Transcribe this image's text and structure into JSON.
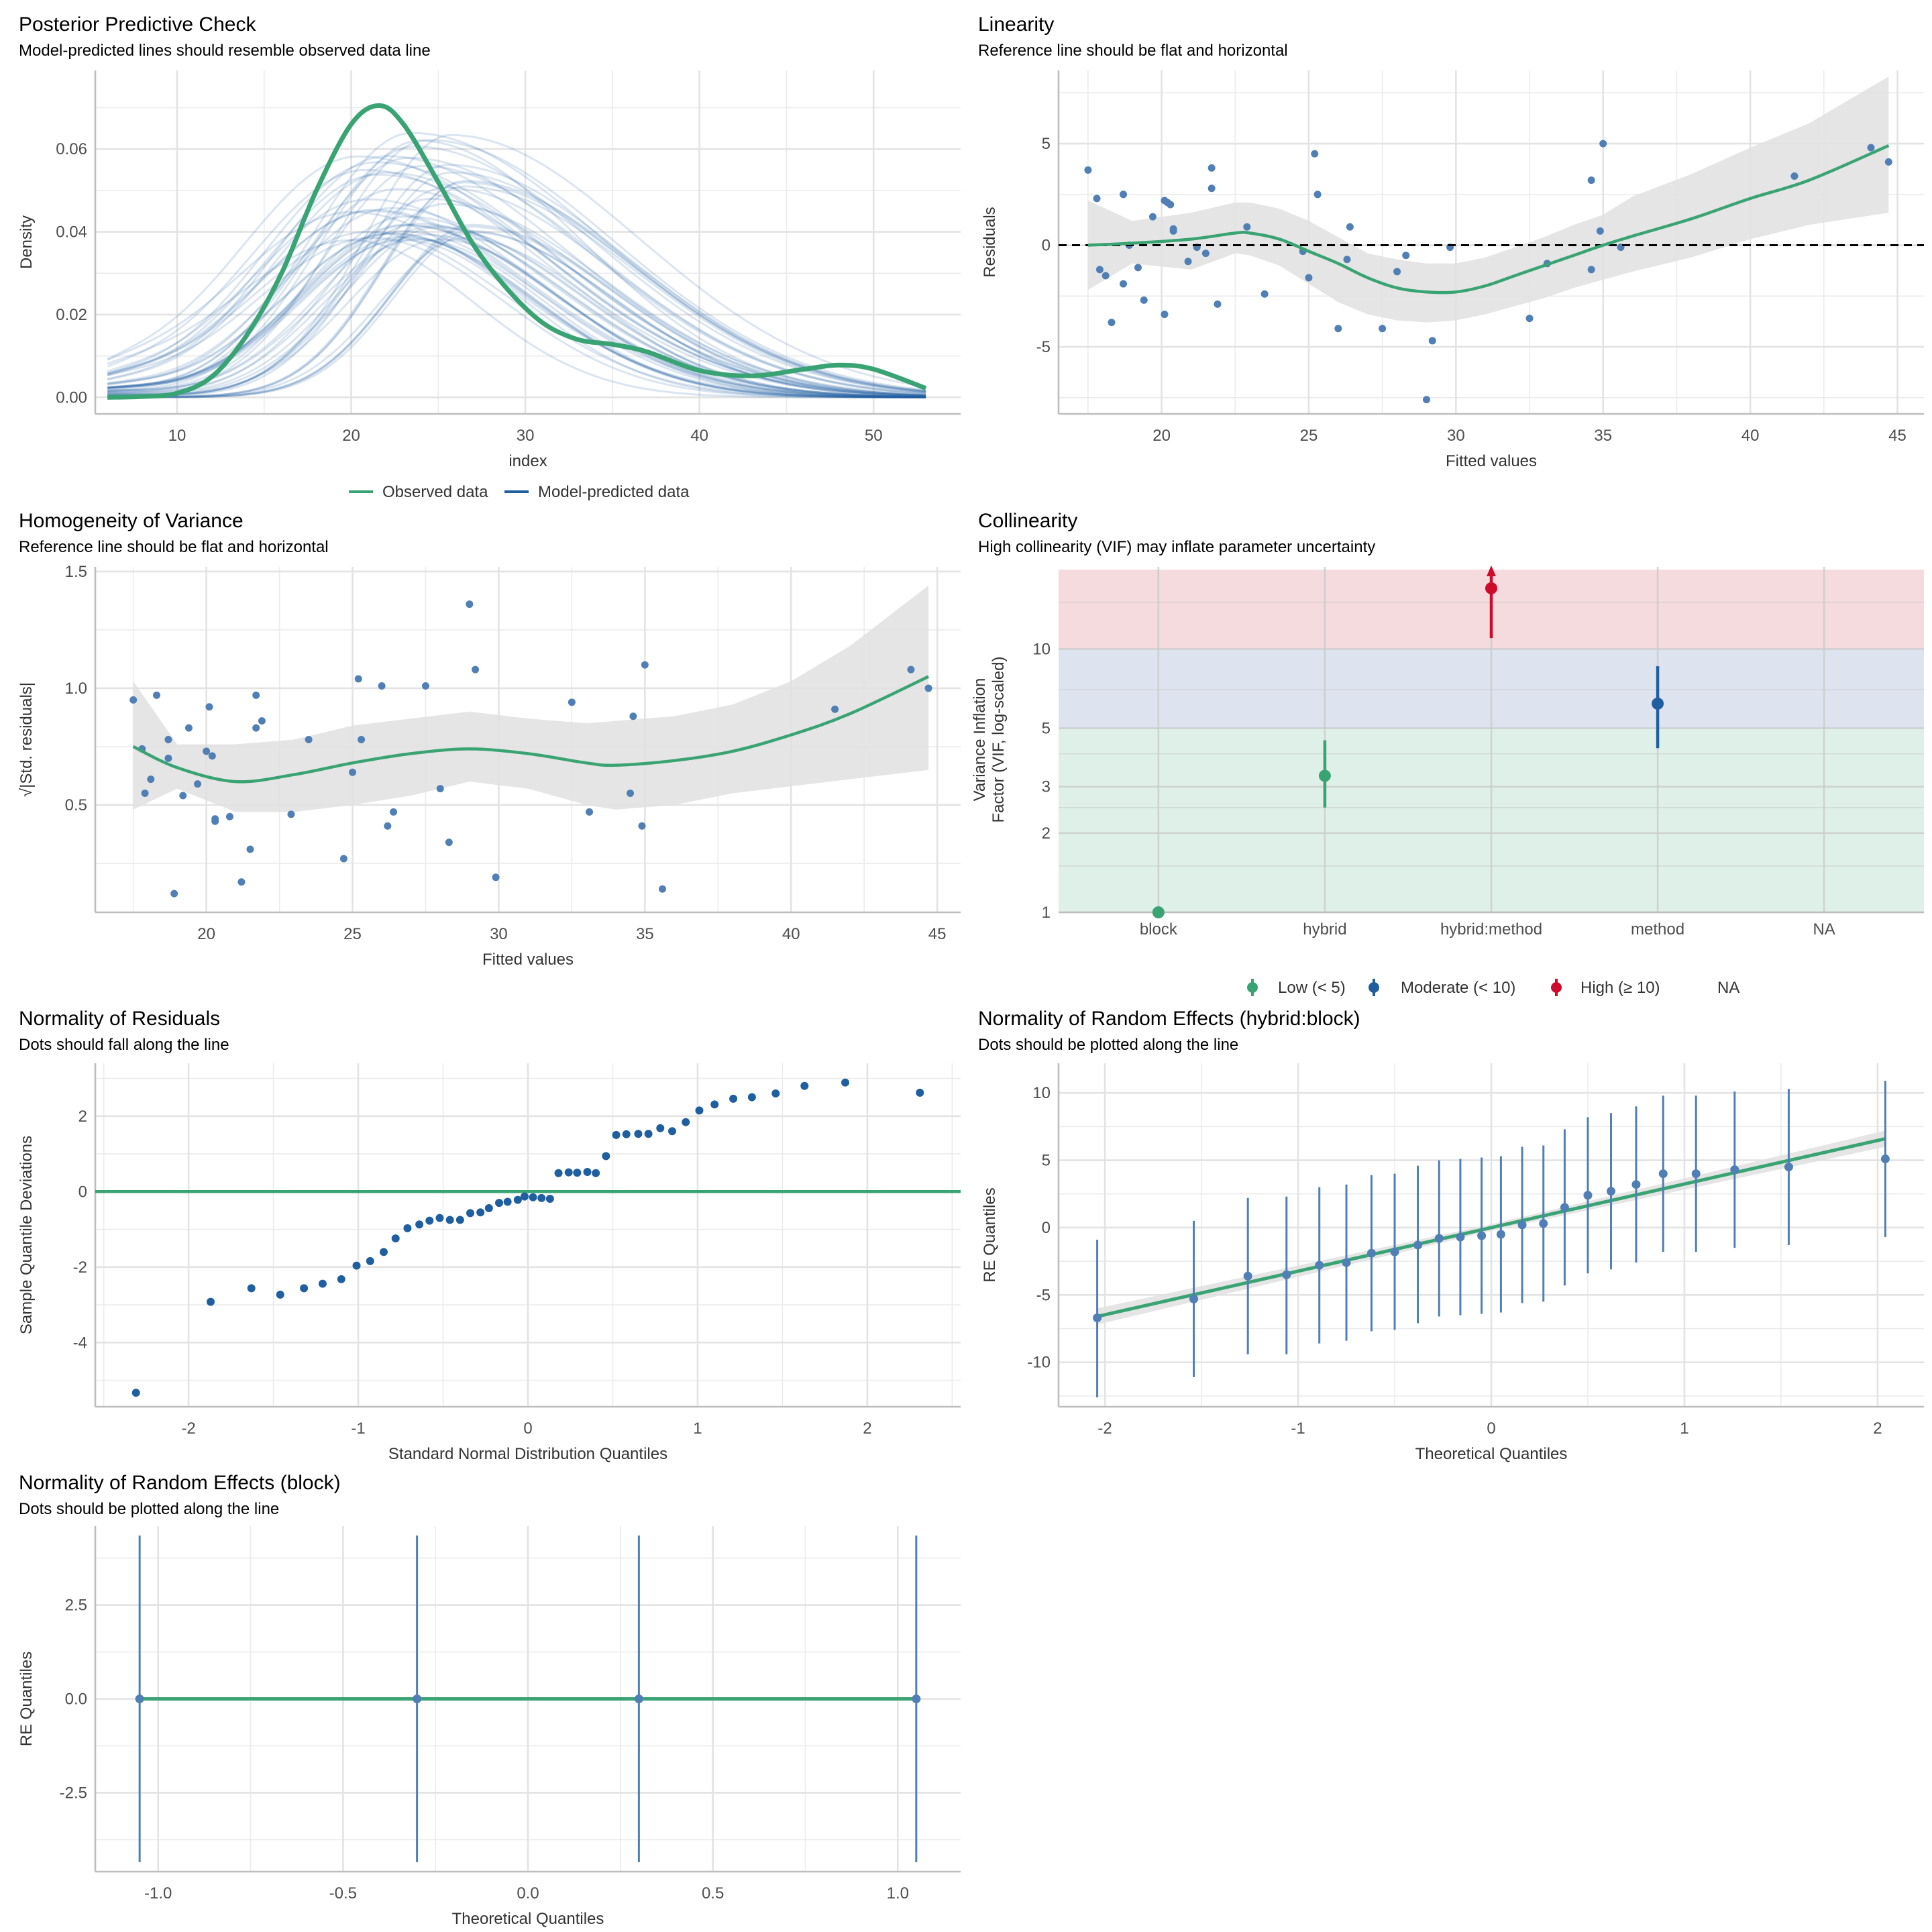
{
  "colors": {
    "green": "#3aa374",
    "blue": "#1f5fa0",
    "blue_light": "#4f7fb4",
    "red": "#cd0b2a",
    "band": "#e0e0e0",
    "zone_low": "#dff0e8",
    "zone_mod": "#dee4ef",
    "zone_high": "#f5dade"
  },
  "panels": {
    "ppc": {
      "title": "Posterior Predictive Check",
      "subtitle": "Model-predicted lines should resemble observed data line"
    },
    "lin": {
      "title": "Linearity",
      "subtitle": "Reference line should be flat and horizontal"
    },
    "hov": {
      "title": "Homogeneity of Variance",
      "subtitle": "Reference line should be flat and horizontal"
    },
    "col": {
      "title": "Collinearity",
      "subtitle": "High collinearity (VIF) may inflate parameter uncertainty"
    },
    "nor": {
      "title": "Normality of Residuals",
      "subtitle": "Dots should fall along the line"
    },
    "rehb": {
      "title": "Normality of Random Effects (hybrid:block)",
      "subtitle": "Dots should be plotted along the line"
    },
    "reb": {
      "title": "Normality of Random Effects (block)",
      "subtitle": "Dots should be plotted along the line"
    }
  },
  "chart_data": [
    {
      "id": "ppc",
      "type": "line",
      "title": "Posterior Predictive Check",
      "xlabel": "index",
      "ylabel": "Density",
      "xlim": [
        5.3,
        55
      ],
      "ylim": [
        -0.004,
        0.079
      ],
      "xticks": [
        10,
        20,
        30,
        40,
        50
      ],
      "yticks": [
        0.0,
        0.02,
        0.04,
        0.06
      ],
      "ytick_labels": [
        "0.00",
        "0.02",
        "0.04",
        "0.06"
      ],
      "legend": {
        "position": "bottom",
        "entries": [
          "Observed data",
          "Model-predicted data"
        ]
      },
      "observed": {
        "name": "Observed data",
        "x": [
          6,
          8,
          10,
          12,
          14,
          16,
          18,
          20,
          21.6,
          23,
          25,
          27,
          29,
          31,
          33,
          35,
          37,
          40,
          43,
          46,
          48,
          50,
          53
        ],
        "y": [
          0,
          0.0002,
          0.001,
          0.005,
          0.015,
          0.03,
          0.05,
          0.066,
          0.0705,
          0.066,
          0.052,
          0.037,
          0.026,
          0.018,
          0.014,
          0.0128,
          0.011,
          0.0065,
          0.0052,
          0.0068,
          0.0078,
          0.0068,
          0.0022
        ]
      },
      "predicted_summary": {
        "name": "Model-predicted data",
        "n_draws": 50,
        "peak_range": [
          0.04,
          0.076
        ],
        "mode_range": [
          20,
          27
        ]
      }
    },
    {
      "id": "lin",
      "type": "scatter",
      "title": "Linearity",
      "xlabel": "Fitted values",
      "ylabel": "Residuals",
      "xlim": [
        16.5,
        45.9
      ],
      "ylim": [
        -8.3,
        8.6
      ],
      "xticks": [
        20,
        25,
        30,
        35,
        40,
        45
      ],
      "yticks": [
        -5,
        0,
        5
      ],
      "points": [
        [
          17.5,
          3.7
        ],
        [
          17.8,
          2.3
        ],
        [
          17.9,
          -1.2
        ],
        [
          18.1,
          -1.5
        ],
        [
          18.3,
          -3.8
        ],
        [
          18.7,
          2.5
        ],
        [
          18.7,
          -1.9
        ],
        [
          18.9,
          0
        ],
        [
          19.2,
          -1.1
        ],
        [
          19.4,
          -2.7
        ],
        [
          19.7,
          1.4
        ],
        [
          20.1,
          2.2
        ],
        [
          20.2,
          2.1
        ],
        [
          20.3,
          2.0
        ],
        [
          20.4,
          0.8
        ],
        [
          20.4,
          0.7
        ],
        [
          20.1,
          -3.4
        ],
        [
          20.9,
          -0.8
        ],
        [
          21.2,
          -0.1
        ],
        [
          21.5,
          -0.4
        ],
        [
          21.7,
          2.8
        ],
        [
          21.7,
          3.8
        ],
        [
          21.9,
          -2.9
        ],
        [
          22.9,
          0.9
        ],
        [
          23.5,
          -2.4
        ],
        [
          24.8,
          -0.3
        ],
        [
          25.0,
          -1.6
        ],
        [
          25.2,
          4.5
        ],
        [
          25.3,
          2.5
        ],
        [
          26.0,
          -4.1
        ],
        [
          26.3,
          -0.7
        ],
        [
          26.4,
          0.9
        ],
        [
          27.5,
          -4.1
        ],
        [
          28.0,
          -1.3
        ],
        [
          28.3,
          -0.5
        ],
        [
          29.0,
          -7.6
        ],
        [
          29.2,
          -4.7
        ],
        [
          29.8,
          -0.1
        ],
        [
          32.5,
          -3.6
        ],
        [
          33.1,
          -0.9
        ],
        [
          34.6,
          3.2
        ],
        [
          34.6,
          -1.2
        ],
        [
          34.9,
          0.7
        ],
        [
          35.0,
          5.0
        ],
        [
          35.6,
          -0.1
        ],
        [
          41.5,
          3.4
        ],
        [
          44.1,
          4.8
        ],
        [
          44.7,
          4.1
        ]
      ],
      "smooth": {
        "x": [
          17.5,
          19,
          21,
          22.5,
          23,
          24,
          25,
          26,
          27,
          28,
          29,
          30,
          31,
          32,
          33,
          34,
          35,
          36,
          38,
          40,
          42,
          44.7
        ],
        "y": [
          0,
          0.1,
          0.3,
          0.6,
          0.6,
          0.3,
          -0.3,
          -0.9,
          -1.6,
          -2.1,
          -2.3,
          -2.3,
          -2.0,
          -1.5,
          -1.0,
          -0.5,
          0,
          0.45,
          1.3,
          2.3,
          3.2,
          4.9
        ],
        "lo": [
          -2.2,
          -0.9,
          -1.2,
          -0.4,
          -0.5,
          -1.0,
          -1.9,
          -2.8,
          -3.4,
          -3.7,
          -3.8,
          -3.7,
          -3.4,
          -3.0,
          -2.6,
          -2.1,
          -1.7,
          -1.3,
          -0.6,
          0.3,
          1.0,
          1.6
        ],
        "hi": [
          2.2,
          1.2,
          1.6,
          2.1,
          2.1,
          1.8,
          1.2,
          0.4,
          -0.4,
          -0.7,
          -0.9,
          -0.9,
          -0.6,
          -0.1,
          0.4,
          1.0,
          1.5,
          2.4,
          3.5,
          4.8,
          6.0,
          8.3
        ]
      },
      "reference_line": 0
    },
    {
      "id": "hov",
      "type": "scatter",
      "title": "Homogeneity of Variance",
      "xlabel": "Fitted values",
      "ylabel": "√|Std. residuals|",
      "xlim": [
        16.2,
        45.8
      ],
      "ylim": [
        0.04,
        1.52
      ],
      "xticks": [
        20,
        25,
        30,
        35,
        40,
        45
      ],
      "yticks": [
        0.5,
        1.0,
        1.5
      ],
      "ytick_labels": [
        "0.5",
        "1.0",
        "1.5"
      ],
      "points": [
        [
          17.5,
          0.95
        ],
        [
          17.8,
          0.74
        ],
        [
          17.9,
          0.55
        ],
        [
          18.1,
          0.61
        ],
        [
          18.3,
          0.97
        ],
        [
          18.7,
          0.78
        ],
        [
          18.7,
          0.7
        ],
        [
          18.9,
          0.12
        ],
        [
          19.2,
          0.54
        ],
        [
          19.4,
          0.83
        ],
        [
          19.7,
          0.59
        ],
        [
          20.0,
          0.73
        ],
        [
          20.1,
          0.92
        ],
        [
          20.2,
          0.71
        ],
        [
          20.3,
          0.44
        ],
        [
          20.3,
          0.43
        ],
        [
          20.8,
          0.45
        ],
        [
          21.2,
          0.17
        ],
        [
          21.5,
          0.31
        ],
        [
          21.7,
          0.83
        ],
        [
          21.7,
          0.97
        ],
        [
          21.9,
          0.86
        ],
        [
          22.9,
          0.46
        ],
        [
          23.5,
          0.78
        ],
        [
          24.7,
          0.27
        ],
        [
          25.0,
          0.64
        ],
        [
          25.2,
          1.04
        ],
        [
          25.3,
          0.78
        ],
        [
          26.0,
          1.01
        ],
        [
          26.2,
          0.41
        ],
        [
          26.4,
          0.47
        ],
        [
          27.5,
          1.01
        ],
        [
          28.0,
          0.57
        ],
        [
          28.3,
          0.34
        ],
        [
          29.0,
          1.36
        ],
        [
          29.2,
          1.08
        ],
        [
          29.9,
          0.19
        ],
        [
          32.5,
          0.94
        ],
        [
          33.1,
          0.47
        ],
        [
          34.5,
          0.55
        ],
        [
          34.6,
          0.88
        ],
        [
          34.9,
          0.41
        ],
        [
          35.0,
          1.1
        ],
        [
          35.6,
          0.14
        ],
        [
          41.5,
          0.91
        ],
        [
          44.1,
          1.08
        ],
        [
          44.7,
          1.0
        ]
      ],
      "smooth": {
        "x": [
          17.5,
          19,
          21,
          23,
          25,
          27,
          29,
          31,
          33,
          34,
          36,
          38,
          40,
          42,
          44.7
        ],
        "y": [
          0.75,
          0.66,
          0.6,
          0.63,
          0.68,
          0.72,
          0.74,
          0.72,
          0.68,
          0.67,
          0.69,
          0.73,
          0.8,
          0.89,
          1.05
        ],
        "lo": [
          0.48,
          0.57,
          0.47,
          0.47,
          0.5,
          0.54,
          0.6,
          0.57,
          0.5,
          0.48,
          0.5,
          0.55,
          0.58,
          0.61,
          0.65
        ],
        "hi": [
          1.03,
          0.76,
          0.76,
          0.78,
          0.84,
          0.87,
          0.9,
          0.87,
          0.85,
          0.86,
          0.88,
          0.93,
          1.03,
          1.18,
          1.44
        ]
      }
    },
    {
      "id": "col",
      "type": "scatter",
      "title": "Collinearity",
      "xlabel": "",
      "ylabel": "Variance Inflation\nFactor (VIF, log-scaled)",
      "yscale": "log",
      "ylim": [
        1,
        20
      ],
      "yticks": [
        1,
        2,
        3,
        5,
        10
      ],
      "categories": [
        "block",
        "hybrid",
        "hybrid:method",
        "method",
        "NA"
      ],
      "zones": [
        {
          "name": "Low",
          "from": 1,
          "to": 5
        },
        {
          "name": "Moderate",
          "from": 5,
          "to": 10
        },
        {
          "name": "High",
          "from": 10,
          "to": 20
        }
      ],
      "points": [
        {
          "term": "block",
          "vif": 1.0,
          "lo": 1.0,
          "hi": 1.0,
          "level": "low"
        },
        {
          "term": "hybrid",
          "vif": 3.3,
          "lo": 2.5,
          "hi": 4.5,
          "level": "low"
        },
        {
          "term": "hybrid:method",
          "vif": 17,
          "lo": 11,
          "hi": 20,
          "level": "high",
          "arrow": true
        },
        {
          "term": "method",
          "vif": 6.2,
          "lo": 4.2,
          "hi": 8.6,
          "level": "moderate"
        }
      ],
      "legend": {
        "position": "bottom",
        "entries": [
          "Low (< 5)",
          "Moderate (< 10)",
          "High (≥ 10)",
          "NA"
        ]
      }
    },
    {
      "id": "nor",
      "type": "scatter",
      "title": "Normality of Residuals",
      "xlabel": "Standard Normal Distribution Quantiles",
      "ylabel": "Sample Quantile Deviations",
      "xlim": [
        -2.55,
        2.55
      ],
      "ylim": [
        -5.7,
        3.4
      ],
      "xticks": [
        -2,
        -1,
        0,
        1,
        2
      ],
      "yticks": [
        -4,
        -2,
        0,
        2
      ],
      "points": [
        [
          -2.31,
          -5.33
        ],
        [
          -1.87,
          -2.92
        ],
        [
          -1.63,
          -2.56
        ],
        [
          -1.46,
          -2.73
        ],
        [
          -1.32,
          -2.56
        ],
        [
          -1.21,
          -2.44
        ],
        [
          -1.1,
          -2.32
        ],
        [
          -1.01,
          -1.96
        ],
        [
          -0.93,
          -1.84
        ],
        [
          -0.85,
          -1.6
        ],
        [
          -0.78,
          -1.24
        ],
        [
          -0.71,
          -0.97
        ],
        [
          -0.64,
          -0.87
        ],
        [
          -0.58,
          -0.77
        ],
        [
          -0.52,
          -0.7
        ],
        [
          -0.46,
          -0.75
        ],
        [
          -0.4,
          -0.75
        ],
        [
          -0.34,
          -0.57
        ],
        [
          -0.28,
          -0.55
        ],
        [
          -0.23,
          -0.44
        ],
        [
          -0.17,
          -0.3
        ],
        [
          -0.12,
          -0.27
        ],
        [
          -0.06,
          -0.22
        ],
        [
          -0.02,
          -0.13
        ],
        [
          0.03,
          -0.15
        ],
        [
          0.08,
          -0.17
        ],
        [
          0.13,
          -0.19
        ],
        [
          0.18,
          0.49
        ],
        [
          0.24,
          0.51
        ],
        [
          0.29,
          0.5
        ],
        [
          0.35,
          0.52
        ],
        [
          0.4,
          0.49
        ],
        [
          0.46,
          0.94
        ],
        [
          0.52,
          1.5
        ],
        [
          0.58,
          1.52
        ],
        [
          0.65,
          1.53
        ],
        [
          0.71,
          1.53
        ],
        [
          0.78,
          1.68
        ],
        [
          0.85,
          1.6
        ],
        [
          0.93,
          1.84
        ],
        [
          1.01,
          2.15
        ],
        [
          1.1,
          2.31
        ],
        [
          1.21,
          2.46
        ],
        [
          1.32,
          2.5
        ],
        [
          1.46,
          2.6
        ],
        [
          1.63,
          2.8
        ],
        [
          1.87,
          2.89
        ],
        [
          2.31,
          2.62
        ]
      ],
      "reference_line": 0
    },
    {
      "id": "rehb",
      "type": "scatter",
      "title": "Normality of Random Effects (hybrid:block)",
      "xlabel": "Theoretical Quantiles",
      "ylabel": "RE Quantiles",
      "xlim": [
        -2.24,
        2.24
      ],
      "ylim": [
        -13.3,
        12.2
      ],
      "xticks": [
        -2,
        -1,
        0,
        1,
        2
      ],
      "yticks": [
        -10,
        -5,
        0,
        5,
        10
      ],
      "points": [
        [
          -2.04,
          -6.7,
          -12.6,
          -0.9
        ],
        [
          -1.54,
          -5.3,
          -11.1,
          0.5
        ],
        [
          -1.26,
          -3.6,
          -9.4,
          2.2
        ],
        [
          -1.06,
          -3.5,
          -9.4,
          2.3
        ],
        [
          -0.89,
          -2.8,
          -8.6,
          3.0
        ],
        [
          -0.75,
          -2.6,
          -8.4,
          3.2
        ],
        [
          -0.62,
          -1.9,
          -7.7,
          3.9
        ],
        [
          -0.5,
          -1.8,
          -7.6,
          4.0
        ],
        [
          -0.38,
          -1.3,
          -7.1,
          4.6
        ],
        [
          -0.27,
          -0.8,
          -6.6,
          5.0
        ],
        [
          -0.16,
          -0.7,
          -6.5,
          5.1
        ],
        [
          -0.05,
          -0.6,
          -6.4,
          5.2
        ],
        [
          0.05,
          -0.5,
          -6.3,
          5.3
        ],
        [
          0.16,
          0.2,
          -5.6,
          6.0
        ],
        [
          0.27,
          0.3,
          -5.5,
          6.1
        ],
        [
          0.38,
          1.5,
          -4.3,
          7.3
        ],
        [
          0.5,
          2.4,
          -3.4,
          8.2
        ],
        [
          0.62,
          2.7,
          -3.1,
          8.5
        ],
        [
          0.75,
          3.2,
          -2.6,
          9.0
        ],
        [
          0.89,
          4.0,
          -1.8,
          9.8
        ],
        [
          1.06,
          4.0,
          -1.8,
          9.8
        ],
        [
          1.26,
          4.3,
          -1.5,
          10.1
        ],
        [
          1.54,
          4.5,
          -1.3,
          10.3
        ],
        [
          2.04,
          5.1,
          -0.7,
          10.9
        ]
      ],
      "fit": {
        "x": [
          -2.04,
          2.04
        ],
        "y": [
          -6.6,
          6.6
        ]
      }
    },
    {
      "id": "reb",
      "type": "scatter",
      "title": "Normality of Random Effects (block)",
      "xlabel": "Theoretical Quantiles",
      "ylabel": "RE Quantiles",
      "xlim": [
        -1.17,
        1.17
      ],
      "ylim": [
        -4.6,
        4.6
      ],
      "xticks": [
        -1.0,
        -0.5,
        0.0,
        0.5,
        1.0
      ],
      "xtick_labels": [
        "-1.0",
        "-0.5",
        "0.0",
        "0.5",
        "1.0"
      ],
      "yticks": [
        -2.5,
        0.0,
        2.5
      ],
      "ytick_labels": [
        "-2.5",
        "0.0",
        "2.5"
      ],
      "points": [
        [
          -1.05,
          0,
          -4.35,
          4.35
        ],
        [
          -0.3,
          0,
          -4.35,
          4.35
        ],
        [
          0.3,
          0,
          -4.35,
          4.35
        ],
        [
          1.05,
          0,
          -4.35,
          4.35
        ]
      ],
      "fit": {
        "x": [
          -1.05,
          1.05
        ],
        "y": [
          0,
          0
        ]
      }
    }
  ]
}
